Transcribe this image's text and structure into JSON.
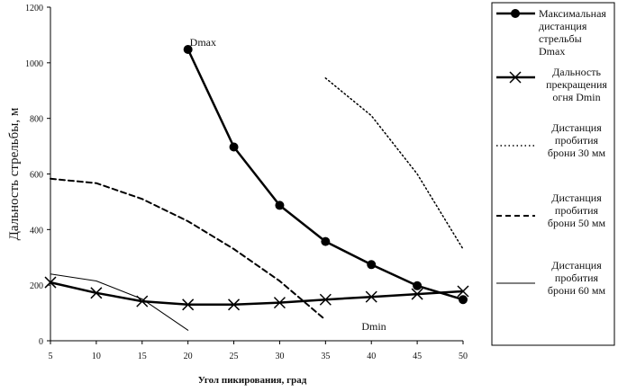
{
  "chart_data": {
    "type": "line",
    "xlabel": "Угол пикирования, град",
    "ylabel": "Дальность стрельбы, м",
    "xlim": [
      5,
      50
    ],
    "ylim": [
      0,
      1200
    ],
    "xticks": [
      5,
      10,
      15,
      20,
      25,
      30,
      35,
      40,
      45,
      50
    ],
    "yticks": [
      0,
      200,
      400,
      600,
      800,
      1000,
      1200
    ],
    "grid": false,
    "legend_position": "right",
    "series": [
      {
        "name": [
          "Максимальная",
          "дистанция",
          "стрельбы",
          "Dmax"
        ],
        "style": "solid-circle",
        "color": "#000000",
        "points": [
          [
            20,
            1048
          ],
          [
            25,
            697
          ],
          [
            30,
            487
          ],
          [
            35,
            357
          ],
          [
            40,
            274
          ],
          [
            45,
            198
          ],
          [
            50,
            148
          ]
        ]
      },
      {
        "name": [
          "Дальность",
          "прекращения",
          "огня Dmin"
        ],
        "style": "solid-x",
        "color": "#000000",
        "points": [
          [
            5,
            210
          ],
          [
            10,
            172
          ],
          [
            15,
            142
          ],
          [
            20,
            130
          ],
          [
            25,
            130
          ],
          [
            30,
            137
          ],
          [
            35,
            148
          ],
          [
            40,
            158
          ],
          [
            45,
            168
          ],
          [
            50,
            178
          ]
        ]
      },
      {
        "name": [
          "Дистанция",
          "пробития",
          "брони 30 мм"
        ],
        "style": "dotted",
        "color": "#000000",
        "points": [
          [
            35,
            945
          ],
          [
            40,
            810
          ],
          [
            45,
            600
          ],
          [
            50,
            330
          ]
        ]
      },
      {
        "name": [
          "Дистанция",
          "пробития",
          "брони 50 мм"
        ],
        "style": "dashed",
        "color": "#000000",
        "points": [
          [
            5,
            583
          ],
          [
            10,
            567
          ],
          [
            15,
            510
          ],
          [
            20,
            430
          ],
          [
            25,
            330
          ],
          [
            30,
            215
          ],
          [
            35,
            75
          ]
        ]
      },
      {
        "name": [
          "Дистанция",
          "пробития",
          "брони 60 мм"
        ],
        "style": "thin",
        "color": "#000000",
        "points": [
          [
            5,
            240
          ],
          [
            10,
            215
          ],
          [
            15,
            150
          ],
          [
            20,
            38
          ]
        ]
      }
    ],
    "annotations": [
      {
        "text": "Dmax",
        "x": 20,
        "y": 1048
      },
      {
        "text": "Dmin",
        "x": 35,
        "y": 148
      }
    ]
  }
}
